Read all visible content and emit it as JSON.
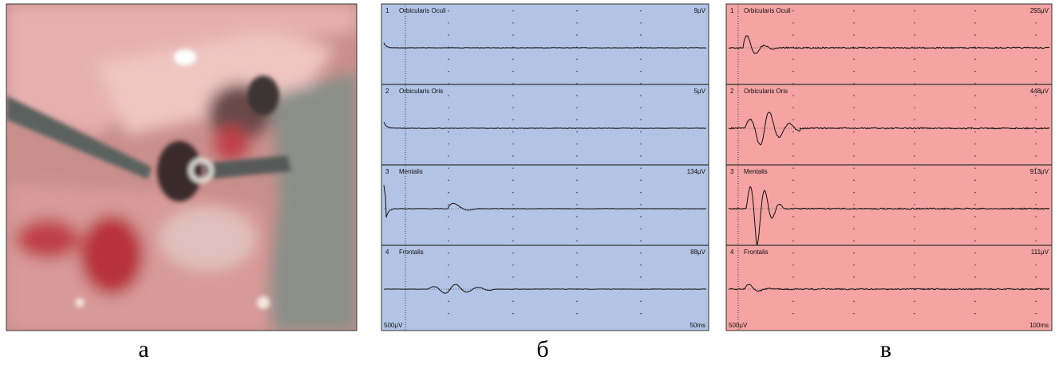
{
  "panels": [
    {
      "label": "а"
    },
    {
      "label": "б",
      "channels": [
        {
          "number": "1",
          "name": "Orbicularis Oculi",
          "amplitude": "9μV"
        },
        {
          "number": "2",
          "name": "Orbicularis Oris",
          "amplitude": "5μV"
        },
        {
          "number": "3",
          "name": "Mentalis",
          "amplitude": "134μV"
        },
        {
          "number": "4",
          "name": "Frontalis",
          "amplitude": "88μV"
        }
      ],
      "scale": "500μV",
      "time": "50ms"
    },
    {
      "label": "в",
      "channels": [
        {
          "number": "1",
          "name": "Orbicularis Oculi",
          "amplitude": "255μV"
        },
        {
          "number": "2",
          "name": "Orbicularis Oris",
          "amplitude": "448μV"
        },
        {
          "number": "3",
          "name": "Mentalis",
          "amplitude": "913μV"
        },
        {
          "number": "4",
          "name": "Frontalis",
          "amplitude": "111μV"
        }
      ],
      "scale": "500μV",
      "time": "100ms"
    }
  ]
}
